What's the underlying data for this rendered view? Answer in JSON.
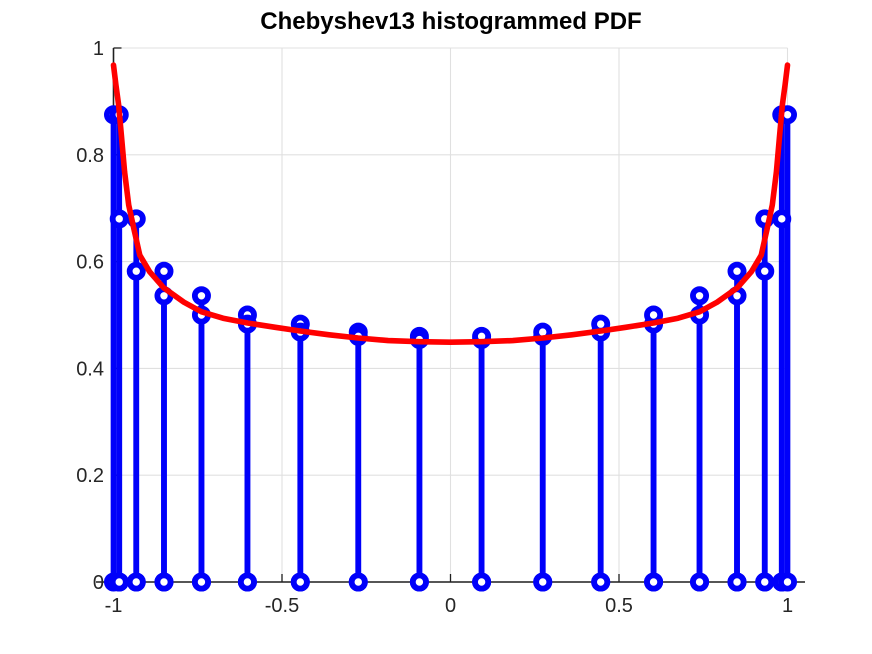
{
  "chart_data": {
    "type": "bar",
    "subtype": "stem-histogram-with-pdf-curve",
    "title": "Chebyshev13 histogrammed PDF",
    "xlabel": "",
    "ylabel": "",
    "xlim": [
      -1.05,
      1.05
    ],
    "ylim": [
      0,
      1
    ],
    "grid": true,
    "legend": null,
    "x_ticks": [
      -1,
      -0.5,
      0,
      0.5,
      1
    ],
    "x_tick_labels": [
      "-1",
      "-0.5",
      "0",
      "0.5",
      "1"
    ],
    "y_ticks": [
      0,
      0.2,
      0.4,
      0.6,
      0.8,
      1
    ],
    "y_tick_labels": [
      "0",
      "0.2",
      "0.4",
      "0.6",
      "0.8",
      "1"
    ],
    "bins": {
      "note": "histogram bins at Chebyshev-node edges cos(k*pi/17); each bin value drawn as blue stems with circle markers at both bin edges, circles also at zero baseline",
      "edges": [
        -1,
        -0.983,
        -0.9325,
        -0.8502,
        -0.739,
        -0.6026,
        -0.4457,
        -0.2737,
        -0.0923,
        0.0923,
        0.2737,
        0.4457,
        0.6026,
        0.739,
        0.8502,
        0.9325,
        0.983,
        1
      ],
      "values": [
        0.875,
        0.68,
        0.582,
        0.536,
        0.5,
        0.483,
        0.468,
        0.46,
        0.454,
        0.46,
        0.468,
        0.483,
        0.5,
        0.536,
        0.582,
        0.68,
        0.875
      ]
    },
    "pdf_curve": {
      "x": [
        -1,
        -0.993,
        -0.985,
        -0.976,
        -0.967,
        -0.955,
        -0.94,
        -0.922,
        -0.893,
        -0.851,
        -0.791,
        -0.739,
        -0.675,
        -0.602,
        -0.52,
        -0.446,
        -0.36,
        -0.274,
        -0.185,
        -0.092,
        0,
        0.092,
        0.185,
        0.274,
        0.36,
        0.446,
        0.52,
        0.602,
        0.675,
        0.739,
        0.791,
        0.851,
        0.893,
        0.922,
        0.94,
        0.955,
        0.967,
        0.976,
        0.985,
        0.993,
        1
      ],
      "y": [
        0.968,
        0.931,
        0.894,
        0.832,
        0.768,
        0.706,
        0.663,
        0.612,
        0.581,
        0.551,
        0.524,
        0.506,
        0.494,
        0.485,
        0.477,
        0.47,
        0.463,
        0.457,
        0.452,
        0.45,
        0.449,
        0.45,
        0.452,
        0.457,
        0.463,
        0.47,
        0.477,
        0.485,
        0.494,
        0.506,
        0.524,
        0.551,
        0.581,
        0.612,
        0.663,
        0.706,
        0.768,
        0.832,
        0.894,
        0.931,
        0.968
      ]
    },
    "colors": {
      "stem": "#0000fa",
      "curve": "#ff0000",
      "grid": "#e0e0e0",
      "axis": "#1f1f1f",
      "tick_label": "#262626",
      "title": "#000000",
      "marker_face": "#ffffff"
    }
  }
}
